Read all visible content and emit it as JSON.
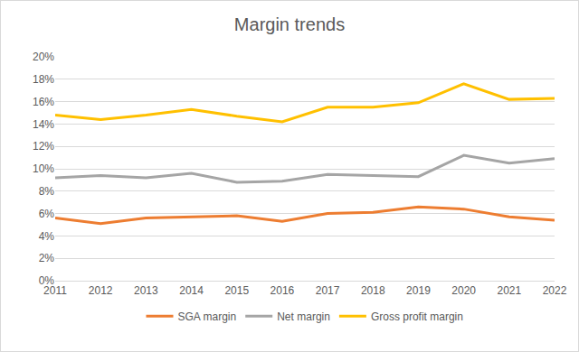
{
  "chart_data": {
    "type": "line",
    "title": "Margin trends",
    "categories": [
      "2011",
      "2012",
      "2013",
      "2014",
      "2015",
      "2016",
      "2017",
      "2018",
      "2019",
      "2020",
      "2021",
      "2022"
    ],
    "series": [
      {
        "name": "SGA margin",
        "color": "#ED7D31",
        "values": [
          5.6,
          5.1,
          5.6,
          5.7,
          5.8,
          5.3,
          6.0,
          6.1,
          6.6,
          6.4,
          5.7,
          5.4
        ]
      },
      {
        "name": "Net margin",
        "color": "#A5A5A5",
        "values": [
          9.2,
          9.4,
          9.2,
          9.6,
          8.8,
          8.9,
          9.5,
          9.4,
          9.3,
          11.2,
          10.5,
          10.9
        ]
      },
      {
        "name": "Gross profit margin",
        "color": "#FFC000",
        "values": [
          14.8,
          14.4,
          14.8,
          15.3,
          14.7,
          14.2,
          15.5,
          15.5,
          15.9,
          17.6,
          16.2,
          16.3
        ]
      }
    ],
    "ylim": [
      0,
      20
    ],
    "yticks": [
      {
        "value": 0,
        "label": "0%"
      },
      {
        "value": 2,
        "label": "2%"
      },
      {
        "value": 4,
        "label": "4%"
      },
      {
        "value": 6,
        "label": "6%"
      },
      {
        "value": 8,
        "label": "8%"
      },
      {
        "value": 10,
        "label": "10%"
      },
      {
        "value": 12,
        "label": "12%"
      },
      {
        "value": 14,
        "label": "14%"
      },
      {
        "value": 16,
        "label": "16%"
      },
      {
        "value": 18,
        "label": "18%"
      },
      {
        "value": 20,
        "label": "20%"
      }
    ],
    "grid": true,
    "legend": "bottom"
  }
}
